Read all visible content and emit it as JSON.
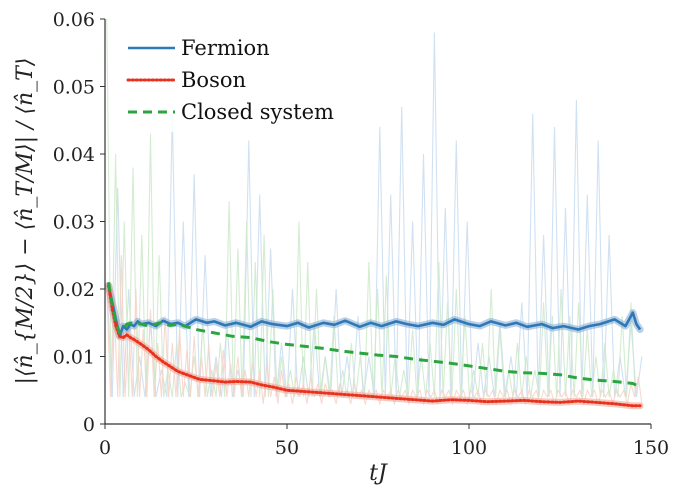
{
  "chart_data": {
    "type": "line",
    "xlabel": "tJ",
    "ylabel": "|⟨n̂_{M/2}⟩ − ⟨n̂_T/M⟩| / ⟨n̂_T⟩",
    "xlim": [
      0,
      150
    ],
    "ylim": [
      0,
      0.06
    ],
    "x_ticks": [
      "0",
      "50",
      "100",
      "150"
    ],
    "y_ticks": [
      "0",
      "0.01",
      "0.02",
      "0.03",
      "0.04",
      "0.05",
      "0.06"
    ],
    "grid": false,
    "legend_position": "top-left",
    "series": [
      {
        "name": "Fermion",
        "style": "solid",
        "color": "#2f78b8",
        "band_color": "#7fa9d4",
        "x": [
          1,
          2,
          3,
          4,
          5,
          6,
          7,
          8,
          9,
          10,
          12,
          14,
          16,
          18,
          20,
          22,
          25,
          28,
          30,
          33,
          36,
          40,
          43,
          46,
          50,
          53,
          56,
          60,
          63,
          66,
          70,
          73,
          76,
          80,
          83,
          86,
          90,
          93,
          96,
          100,
          103,
          106,
          110,
          113,
          116,
          120,
          123,
          126,
          130,
          133,
          136,
          140,
          143,
          145,
          146,
          147
        ],
        "y": [
          0.0205,
          0.018,
          0.0155,
          0.013,
          0.0145,
          0.014,
          0.0148,
          0.0145,
          0.0152,
          0.0148,
          0.015,
          0.0145,
          0.0153,
          0.0148,
          0.015,
          0.0145,
          0.0155,
          0.015,
          0.0152,
          0.0146,
          0.015,
          0.0144,
          0.0152,
          0.0148,
          0.0145,
          0.015,
          0.0143,
          0.015,
          0.0147,
          0.0153,
          0.0144,
          0.015,
          0.0145,
          0.0152,
          0.0148,
          0.0145,
          0.015,
          0.0147,
          0.0155,
          0.0148,
          0.0145,
          0.0152,
          0.0146,
          0.015,
          0.0144,
          0.0148,
          0.0142,
          0.0145,
          0.014,
          0.0145,
          0.0148,
          0.0155,
          0.0145,
          0.0165,
          0.0148,
          0.014
        ]
      },
      {
        "name": "Boson",
        "style": "dotted",
        "color": "#e8321e",
        "band_color": "#f0a090",
        "x": [
          1,
          2,
          3,
          4,
          5,
          6,
          7,
          8,
          10,
          12,
          14,
          16,
          18,
          20,
          23,
          26,
          30,
          33,
          36,
          40,
          43,
          46,
          50,
          55,
          60,
          65,
          70,
          75,
          80,
          85,
          90,
          95,
          100,
          105,
          110,
          115,
          120,
          125,
          130,
          135,
          140,
          145,
          147
        ],
        "y": [
          0.0205,
          0.017,
          0.0145,
          0.013,
          0.0128,
          0.0132,
          0.0128,
          0.0125,
          0.0118,
          0.011,
          0.01,
          0.0092,
          0.0085,
          0.0078,
          0.0072,
          0.0066,
          0.0064,
          0.0062,
          0.0063,
          0.0062,
          0.0058,
          0.0055,
          0.005,
          0.0048,
          0.0046,
          0.0044,
          0.0042,
          0.004,
          0.0038,
          0.0036,
          0.0034,
          0.0036,
          0.0035,
          0.0033,
          0.0034,
          0.0035,
          0.0033,
          0.0032,
          0.0034,
          0.0032,
          0.003,
          0.0027,
          0.0027
        ]
      },
      {
        "name": "Closed system",
        "style": "dashed",
        "color": "#2ca540",
        "band_color": null,
        "x": [
          1,
          2,
          3,
          4,
          5,
          6,
          8,
          10,
          12,
          15,
          18,
          20,
          25,
          30,
          35,
          40,
          45,
          50,
          55,
          60,
          65,
          70,
          75,
          80,
          85,
          90,
          95,
          100,
          105,
          110,
          115,
          120,
          125,
          130,
          135,
          140,
          145,
          147
        ],
        "y": [
          0.021,
          0.0175,
          0.015,
          0.0135,
          0.014,
          0.0148,
          0.015,
          0.0148,
          0.0145,
          0.015,
          0.0146,
          0.0148,
          0.014,
          0.0135,
          0.013,
          0.0128,
          0.0122,
          0.0118,
          0.0115,
          0.0112,
          0.0108,
          0.0105,
          0.0102,
          0.01,
          0.0096,
          0.0093,
          0.009,
          0.0086,
          0.0082,
          0.0078,
          0.0076,
          0.0075,
          0.0073,
          0.0068,
          0.0065,
          0.0063,
          0.006,
          0.0055
        ]
      }
    ],
    "background_traces": [
      {
        "color": "#c8dcf0",
        "t_step": 1.5,
        "peaks": [
          0.021,
          0.01,
          0.035,
          0.008,
          0.02,
          0.045,
          0.01,
          0.03,
          0.015,
          0.041,
          0.008,
          0.024,
          0.046,
          0.012,
          0.03,
          0.01,
          0.037,
          0.015,
          0.025,
          0.048,
          0.01,
          0.03,
          0.015,
          0.04,
          0.008,
          0.028,
          0.042,
          0.012,
          0.034,
          0.01,
          0.026,
          0.044,
          0.012,
          0.03,
          0.02,
          0.04,
          0.01,
          0.05,
          0.015,
          0.028,
          0.01,
          0.036,
          0.02,
          0.045,
          0.01,
          0.03,
          0.016,
          0.041,
          0.01,
          0.028,
          0.044,
          0.012,
          0.034,
          0.02,
          0.047,
          0.01,
          0.03,
          0.015,
          0.04,
          0.01,
          0.058,
          0.015,
          0.032,
          0.01,
          0.042,
          0.02,
          0.03,
          0.045,
          0.012,
          0.028,
          0.01,
          0.05,
          0.015,
          0.034,
          0.01,
          0.04,
          0.018,
          0.03,
          0.046,
          0.012,
          0.028,
          0.01,
          0.044,
          0.02,
          0.032,
          0.012,
          0.048,
          0.015,
          0.034,
          0.01,
          0.042,
          0.018,
          0.028,
          0.046,
          0.01,
          0.03,
          0.015,
          0.038,
          0.01
        ]
      },
      {
        "color": "#cde9c9",
        "t_step": 1.2,
        "peaks": [
          0.06,
          0.01,
          0.04,
          0.005,
          0.03,
          0.008,
          0.038,
          0.012,
          0.028,
          0.006,
          0.043,
          0.01,
          0.025,
          0.04,
          0.008,
          0.035,
          0.012,
          0.028,
          0.006,
          0.032,
          0.01,
          0.036,
          0.015,
          0.025,
          0.008,
          0.03,
          0.012,
          0.022,
          0.033,
          0.008,
          0.026,
          0.01,
          0.03,
          0.018,
          0.024,
          0.008,
          0.028,
          0.014,
          0.02,
          0.03,
          0.01,
          0.026,
          0.008,
          0.022,
          0.03,
          0.012,
          0.024,
          0.008,
          0.02,
          0.028,
          0.01,
          0.022,
          0.016,
          0.025,
          0.008,
          0.02,
          0.012,
          0.026,
          0.01,
          0.018,
          0.024,
          0.008,
          0.02,
          0.012,
          0.022,
          0.016,
          0.01,
          0.024,
          0.008,
          0.018,
          0.014,
          0.022,
          0.01,
          0.02,
          0.012,
          0.016,
          0.024,
          0.008,
          0.018,
          0.012,
          0.02,
          0.01,
          0.016,
          0.022,
          0.008,
          0.018,
          0.012,
          0.016,
          0.02,
          0.01,
          0.014,
          0.018,
          0.008,
          0.02,
          0.012,
          0.016,
          0.01,
          0.022,
          0.008,
          0.014,
          0.018,
          0.01,
          0.016,
          0.012,
          0.02,
          0.008,
          0.016,
          0.012,
          0.018,
          0.01,
          0.014,
          0.02,
          0.01,
          0.016,
          0.012,
          0.018,
          0.008,
          0.014,
          0.016,
          0.01,
          0.018,
          0.012
        ]
      },
      {
        "color": "#f7d2c8",
        "t_step": 1.0,
        "peaks": [
          0.02,
          0.006,
          0.018,
          0.004,
          0.025,
          0.008,
          0.015,
          0.005,
          0.02,
          0.01,
          0.014,
          0.004,
          0.017,
          0.008,
          0.012,
          0.005,
          0.016,
          0.009,
          0.012,
          0.004,
          0.014,
          0.007,
          0.011,
          0.005,
          0.013,
          0.008,
          0.01,
          0.004,
          0.012,
          0.006,
          0.009,
          0.004,
          0.011,
          0.007,
          0.009,
          0.004,
          0.01,
          0.006,
          0.008,
          0.004,
          0.009,
          0.006,
          0.008,
          0.003,
          0.009,
          0.005,
          0.007,
          0.003,
          0.008,
          0.005,
          0.006,
          0.003,
          0.007,
          0.005,
          0.006,
          0.003,
          0.007,
          0.004,
          0.006,
          0.003,
          0.006,
          0.004,
          0.005,
          0.003,
          0.006,
          0.004,
          0.005,
          0.003,
          0.006,
          0.004,
          0.005,
          0.003,
          0.005,
          0.004,
          0.005,
          0.003,
          0.005,
          0.004,
          0.005,
          0.003,
          0.005,
          0.004,
          0.005,
          0.003,
          0.005,
          0.004,
          0.005,
          0.003,
          0.005,
          0.004,
          0.005,
          0.003,
          0.005,
          0.004,
          0.005,
          0.003,
          0.005,
          0.004,
          0.005,
          0.003,
          0.005,
          0.004,
          0.005,
          0.003,
          0.005,
          0.004,
          0.005,
          0.003,
          0.005,
          0.004,
          0.005,
          0.003,
          0.005,
          0.004,
          0.005,
          0.003,
          0.005,
          0.004,
          0.005,
          0.003,
          0.005,
          0.004,
          0.005,
          0.003,
          0.005,
          0.004,
          0.005,
          0.003,
          0.005,
          0.004,
          0.005,
          0.003,
          0.005,
          0.004,
          0.005,
          0.003,
          0.005,
          0.004,
          0.005,
          0.003,
          0.005,
          0.004,
          0.005,
          0.003,
          0.006,
          0.004,
          0.007,
          0.003
        ]
      }
    ]
  }
}
